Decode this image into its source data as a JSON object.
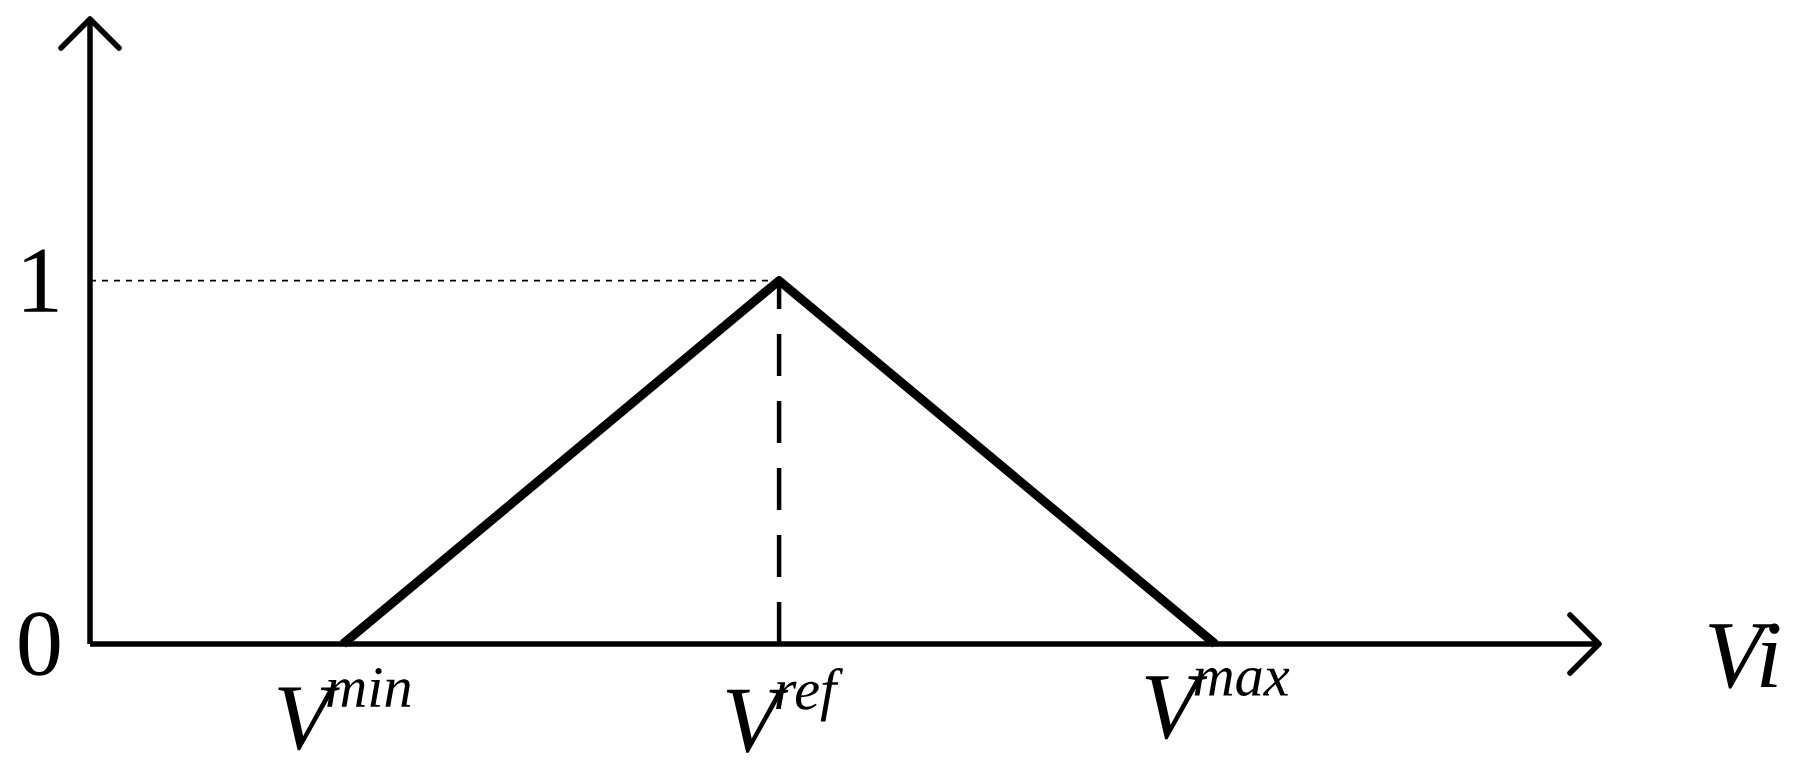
{
  "chart_data": {
    "type": "line",
    "xlabel": "Vi",
    "categories": [
      "V$^{min}$",
      "V$^{ref}$",
      "V$^{max}$"
    ],
    "series": [
      {
        "color": "#000000",
        "values": [
          0,
          1,
          0
        ]
      }
    ],
    "ylim": [
      0,
      1.72
    ],
    "yticks": [
      0,
      1
    ],
    "ref_lines": [
      {
        "axis": "x",
        "value": "V$^{ref}$",
        "line_style": "dashed"
      },
      {
        "axis": "y",
        "value": 1,
        "line_style": "dotted"
      }
    ]
  }
}
